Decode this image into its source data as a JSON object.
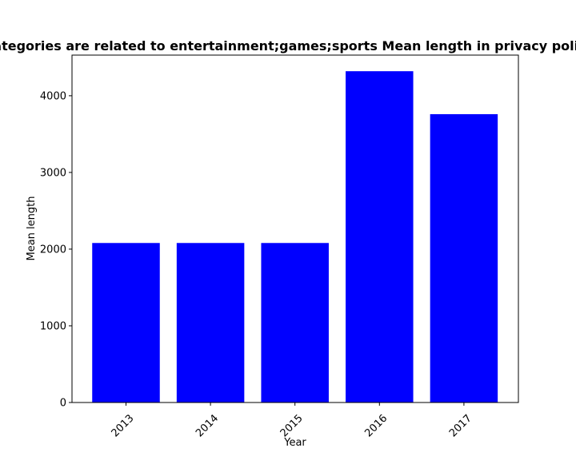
{
  "chart_data": {
    "type": "bar",
    "title": "Categories are related to entertainment;games;sports Mean length in privacy policies",
    "xlabel": "Year",
    "ylabel": "Mean length",
    "categories": [
      "2013",
      "2014",
      "2015",
      "2016",
      "2017"
    ],
    "values": [
      2080,
      2080,
      2080,
      4320,
      3760
    ],
    "ylim": [
      0,
      4530
    ],
    "yticks": [
      0,
      1000,
      2000,
      3000,
      4000
    ],
    "bar_color": "#0000ff",
    "grid": false,
    "x_tick_rotation_deg": 45
  }
}
